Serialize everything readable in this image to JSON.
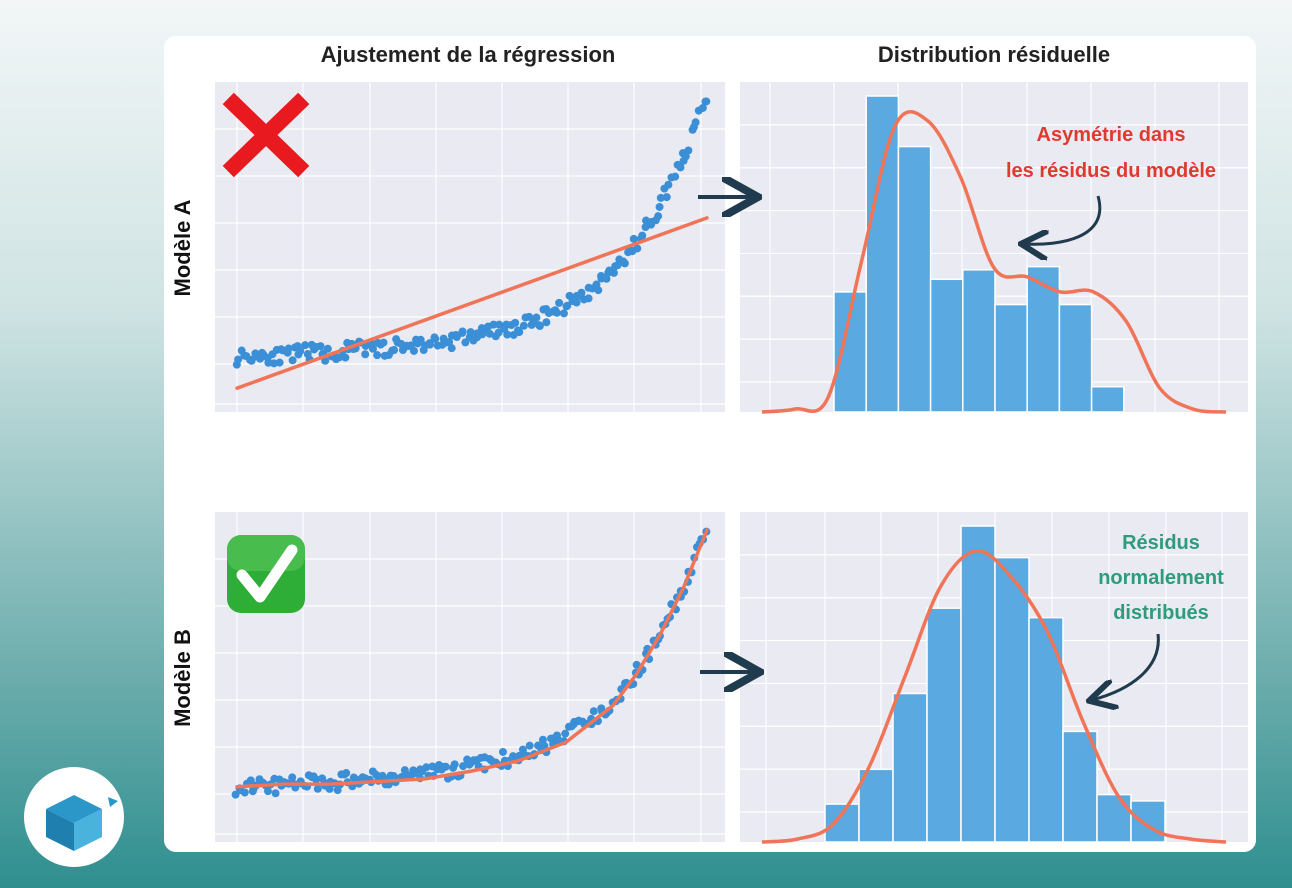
{
  "titles": {
    "left": "Ajustement de la régression",
    "right": "Distribution résiduelle"
  },
  "rows": {
    "a": "Modèle A",
    "b": "Modèle B"
  },
  "annotations": {
    "a": [
      "Asymétrie dans",
      "les résidus du modèle"
    ],
    "b": [
      "Résidus",
      "normalement",
      "distribués"
    ]
  },
  "colors": {
    "panel_bg": "#eaeaf2",
    "point": "#3a8fd6",
    "fit_line": "#f07457",
    "bar": "#5aa9e0",
    "kde": "#f07457",
    "annotation_a": "#e03a2f",
    "annotation_b": "#2e9c7c",
    "arrow": "#1f3b4d",
    "bad_mark": "#e8191f",
    "good_mark": "#2fae37"
  },
  "icons": {
    "a": "cross-mark-icon",
    "b": "check-mark-icon",
    "logo": "brand-logo-icon"
  },
  "chart_data": [
    {
      "type": "scatter",
      "title": "Ajustement de la régression",
      "row": "Modèle A",
      "series": [
        {
          "kind": "points",
          "x": [
            0,
            0.05,
            0.1,
            0.15,
            0.2,
            0.25,
            0.3,
            0.35,
            0.4,
            0.45,
            0.5,
            0.55,
            0.6,
            0.65,
            0.7,
            0.75,
            0.8,
            0.85,
            0.9,
            0.95,
            1.0
          ],
          "y": [
            0.02,
            0.03,
            0.02,
            0.04,
            0.03,
            0.05,
            0.05,
            0.06,
            0.07,
            0.08,
            0.1,
            0.12,
            0.13,
            0.17,
            0.22,
            0.27,
            0.35,
            0.45,
            0.6,
            0.78,
            1.0
          ]
        },
        {
          "kind": "fit",
          "fit_type": "linear",
          "x": [
            0,
            1
          ],
          "y": [
            -0.1,
            0.55
          ]
        }
      ]
    },
    {
      "type": "bar",
      "title": "Distribution résiduelle",
      "row": "Modèle A",
      "values": [
        0.38,
        1.0,
        0.84,
        0.42,
        0.45,
        0.34,
        0.46,
        0.34,
        0.08
      ],
      "kde": [
        0,
        0.01,
        0.05,
        0.5,
        0.95,
        0.97,
        0.78,
        0.48,
        0.45,
        0.4,
        0.4,
        0.3,
        0.08,
        0.01,
        0
      ]
    },
    {
      "type": "scatter",
      "title": "Ajustement de la régression",
      "row": "Modèle B",
      "series": [
        {
          "kind": "points",
          "x": [
            0,
            0.05,
            0.1,
            0.15,
            0.2,
            0.25,
            0.3,
            0.35,
            0.4,
            0.45,
            0.5,
            0.55,
            0.6,
            0.65,
            0.7,
            0.75,
            0.8,
            0.85,
            0.9,
            0.95,
            1.0
          ],
          "y": [
            0.02,
            0.03,
            0.02,
            0.04,
            0.03,
            0.05,
            0.05,
            0.06,
            0.07,
            0.08,
            0.1,
            0.12,
            0.13,
            0.17,
            0.22,
            0.27,
            0.35,
            0.45,
            0.6,
            0.78,
            1.0
          ]
        },
        {
          "kind": "fit",
          "fit_type": "exponential",
          "x": [
            0,
            0.1,
            0.2,
            0.3,
            0.4,
            0.5,
            0.6,
            0.7,
            0.8,
            0.85,
            0.9,
            0.95,
            1.0
          ],
          "y": [
            0.02,
            0.03,
            0.03,
            0.04,
            0.05,
            0.08,
            0.12,
            0.19,
            0.33,
            0.45,
            0.6,
            0.78,
            1.0
          ]
        }
      ]
    },
    {
      "type": "bar",
      "title": "Distribution résiduelle",
      "row": "Modèle B",
      "values": [
        0.12,
        0.23,
        0.47,
        0.74,
        1.0,
        0.9,
        0.71,
        0.35,
        0.15,
        0.13
      ],
      "kde": [
        0,
        0.01,
        0.06,
        0.25,
        0.55,
        0.85,
        0.97,
        0.88,
        0.7,
        0.4,
        0.15,
        0.04,
        0.01,
        0
      ]
    }
  ]
}
